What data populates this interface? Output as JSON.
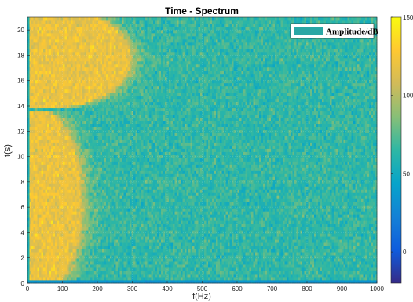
{
  "chart_data": {
    "type": "heatmap",
    "title": "Time - Spectrum",
    "xlabel": "f(Hz)",
    "ylabel": "t(s)",
    "xlim": [
      0,
      1000
    ],
    "ylim": [
      0,
      21
    ],
    "x_ticks": [
      "0",
      "100",
      "200",
      "300",
      "400",
      "500",
      "600",
      "700",
      "800",
      "900",
      "1000"
    ],
    "y_ticks": [
      "0",
      "2",
      "4",
      "6",
      "8",
      "10",
      "12",
      "14",
      "16",
      "18",
      "20"
    ],
    "legend": {
      "label": "Amplitude/dB",
      "swatch_color": "#2aa7a5",
      "location": "top-right"
    },
    "colorbar": {
      "range": [
        -20,
        150
      ],
      "ticks": [
        "0",
        "50",
        "100",
        "150"
      ],
      "colormap": "parula",
      "stops": [
        "#352a87",
        "#0f5cdd",
        "#1481d6",
        "#06a4ca",
        "#2eb7a4",
        "#87bf77",
        "#d1bb59",
        "#fec832",
        "#f9fb0e"
      ]
    },
    "high_amplitude_regions": [
      {
        "t_range": [
          0,
          13
        ],
        "f_extent_max_hz": 150,
        "level_db": 120
      },
      {
        "t_range": [
          14.5,
          21
        ],
        "f_extent_max_hz": 290,
        "level_db": 120
      }
    ],
    "background_level_db": 65
  }
}
